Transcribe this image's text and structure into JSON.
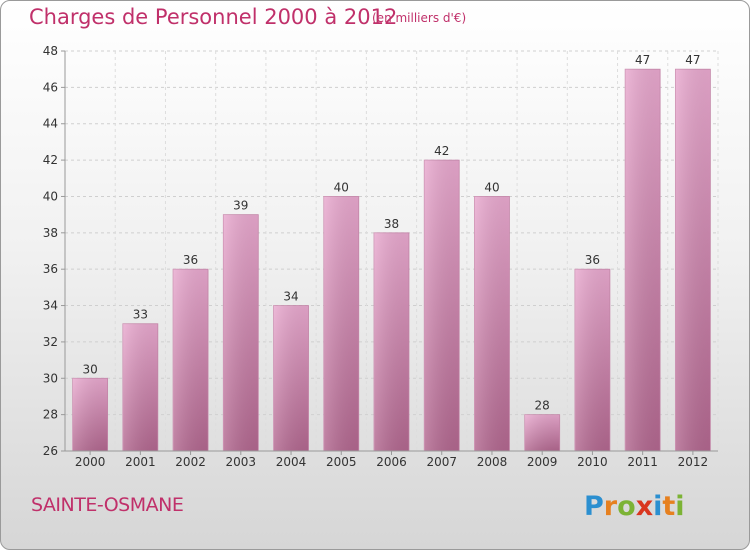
{
  "header": {
    "title": "Charges de Personnel 2000 à 2012",
    "subtitle": "(en milliers d'€)"
  },
  "footer": {
    "place_name": "SAINTE-OSMANE",
    "logo_text": "Proxiti"
  },
  "colors": {
    "bar_light": "#e9a9cf",
    "bar_dark": "#b2678f",
    "title": "#c0306a",
    "grid": "#cccccc"
  },
  "chart_data": {
    "type": "bar",
    "title": "Charges de Personnel 2000 à 2012",
    "subtitle": "(en milliers d'€)",
    "categories": [
      "2000",
      "2001",
      "2002",
      "2003",
      "2004",
      "2005",
      "2006",
      "2007",
      "2008",
      "2009",
      "2010",
      "2011",
      "2012"
    ],
    "values": [
      30,
      33,
      36,
      39,
      34,
      40,
      38,
      42,
      40,
      28,
      36,
      47,
      47
    ],
    "ylim": [
      26,
      48
    ],
    "yticks": [
      26,
      28,
      30,
      32,
      34,
      36,
      38,
      40,
      42,
      44,
      46,
      48
    ],
    "grid": true,
    "xlabel": "",
    "ylabel": ""
  }
}
